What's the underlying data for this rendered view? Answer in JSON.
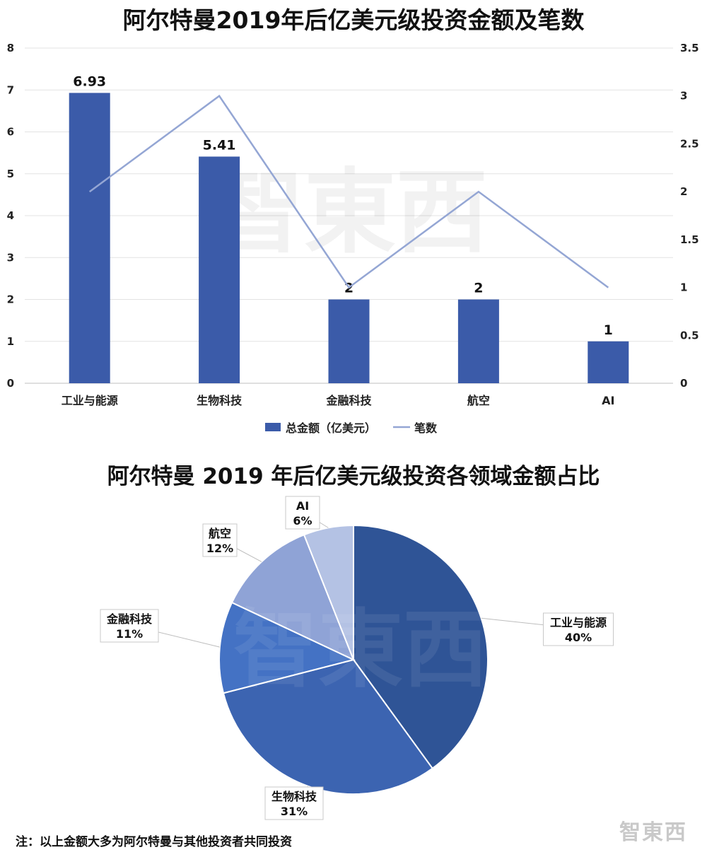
{
  "chart_data": [
    {
      "type": "bar",
      "title": "阿尔特曼2019年后亿美元级投资金额及笔数",
      "categories": [
        "工业与能源",
        "生物科技",
        "金融科技",
        "航空",
        "AI"
      ],
      "series": [
        {
          "name": "总金额（亿美元）",
          "kind": "bar",
          "axis": "left",
          "values": [
            6.93,
            5.41,
            2,
            2,
            1
          ],
          "data_labels": [
            "6.93",
            "5.41",
            "2",
            "2",
            "1"
          ]
        },
        {
          "name": "笔数",
          "kind": "line",
          "axis": "right",
          "values": [
            2,
            3,
            1,
            2,
            1
          ]
        }
      ],
      "ylim_left": [
        0,
        8
      ],
      "ylim_right": [
        0,
        3.5
      ],
      "yticks_left": [
        "0",
        "1",
        "2",
        "3",
        "4",
        "5",
        "6",
        "7",
        "8"
      ],
      "yticks_right": [
        "0",
        "0.5",
        "1",
        "1.5",
        "2",
        "2.5",
        "3",
        "3.5"
      ],
      "grid": true,
      "legend": "bottom",
      "colors": {
        "bar": "#3b5ba9",
        "line": "#94a6d4"
      }
    },
    {
      "type": "pie",
      "title": "阿尔特曼 2019 年后亿美元级投资各领域金额占比",
      "slices": [
        {
          "label": "工业与能源",
          "percent": "40%",
          "value": 40,
          "color": "#2f5496"
        },
        {
          "label": "生物科技",
          "percent": "31%",
          "value": 31,
          "color": "#3c64b1"
        },
        {
          "label": "金融科技",
          "percent": "11%",
          "value": 11,
          "color": "#4472c4"
        },
        {
          "label": "航空",
          "percent": "12%",
          "value": 12,
          "color": "#8fa3d6"
        },
        {
          "label": "AI",
          "percent": "6%",
          "value": 6,
          "color": "#b4c2e4"
        }
      ]
    }
  ],
  "footnote": "注：以上金额大多为阿尔特曼与其他投资者共同投资",
  "watermark": "智東西"
}
